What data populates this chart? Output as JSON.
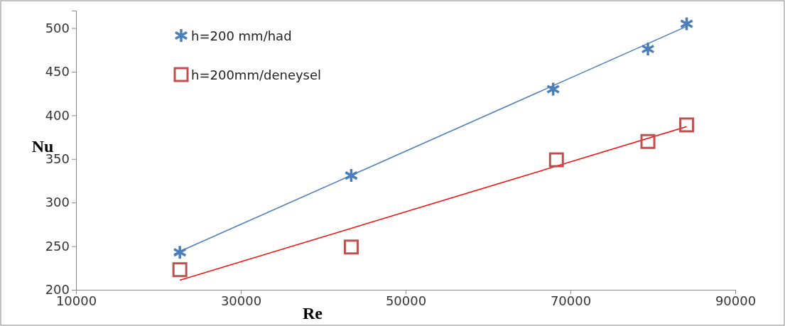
{
  "chart_data": {
    "type": "scatter",
    "xlabel": "Re",
    "ylabel": "Nu",
    "xlim": [
      10000,
      90000
    ],
    "xticks": [
      10000,
      30000,
      50000,
      70000,
      90000
    ],
    "ylim": [
      200,
      520
    ],
    "yticks": [
      200,
      250,
      300,
      350,
      400,
      450,
      500
    ],
    "grid": false,
    "legend": "top left",
    "series": [
      {
        "name": "h=200 mm/had",
        "type": "scatter",
        "marker": "cross",
        "color": "#4a7ebb",
        "x": [
          22600,
          43400,
          67900,
          79400,
          84100
        ],
        "values": [
          243,
          331,
          430,
          476,
          505
        ]
      },
      {
        "name": "h=200mm/deneysel",
        "type": "scatter",
        "marker": "square",
        "color": "#c0504d",
        "x": [
          22600,
          43400,
          68300,
          79400,
          84100
        ],
        "values": [
          223,
          249,
          349,
          370,
          389
        ]
      },
      {
        "type": "line",
        "marker": "none",
        "color": "#4a7ebb",
        "x": [
          21900,
          84100
        ],
        "values": [
          241,
          502
        ]
      },
      {
        "type": "line",
        "marker": "none",
        "color": "#ff0000",
        "x": [
          22600,
          84100
        ],
        "values": [
          211,
          387
        ]
      }
    ]
  }
}
